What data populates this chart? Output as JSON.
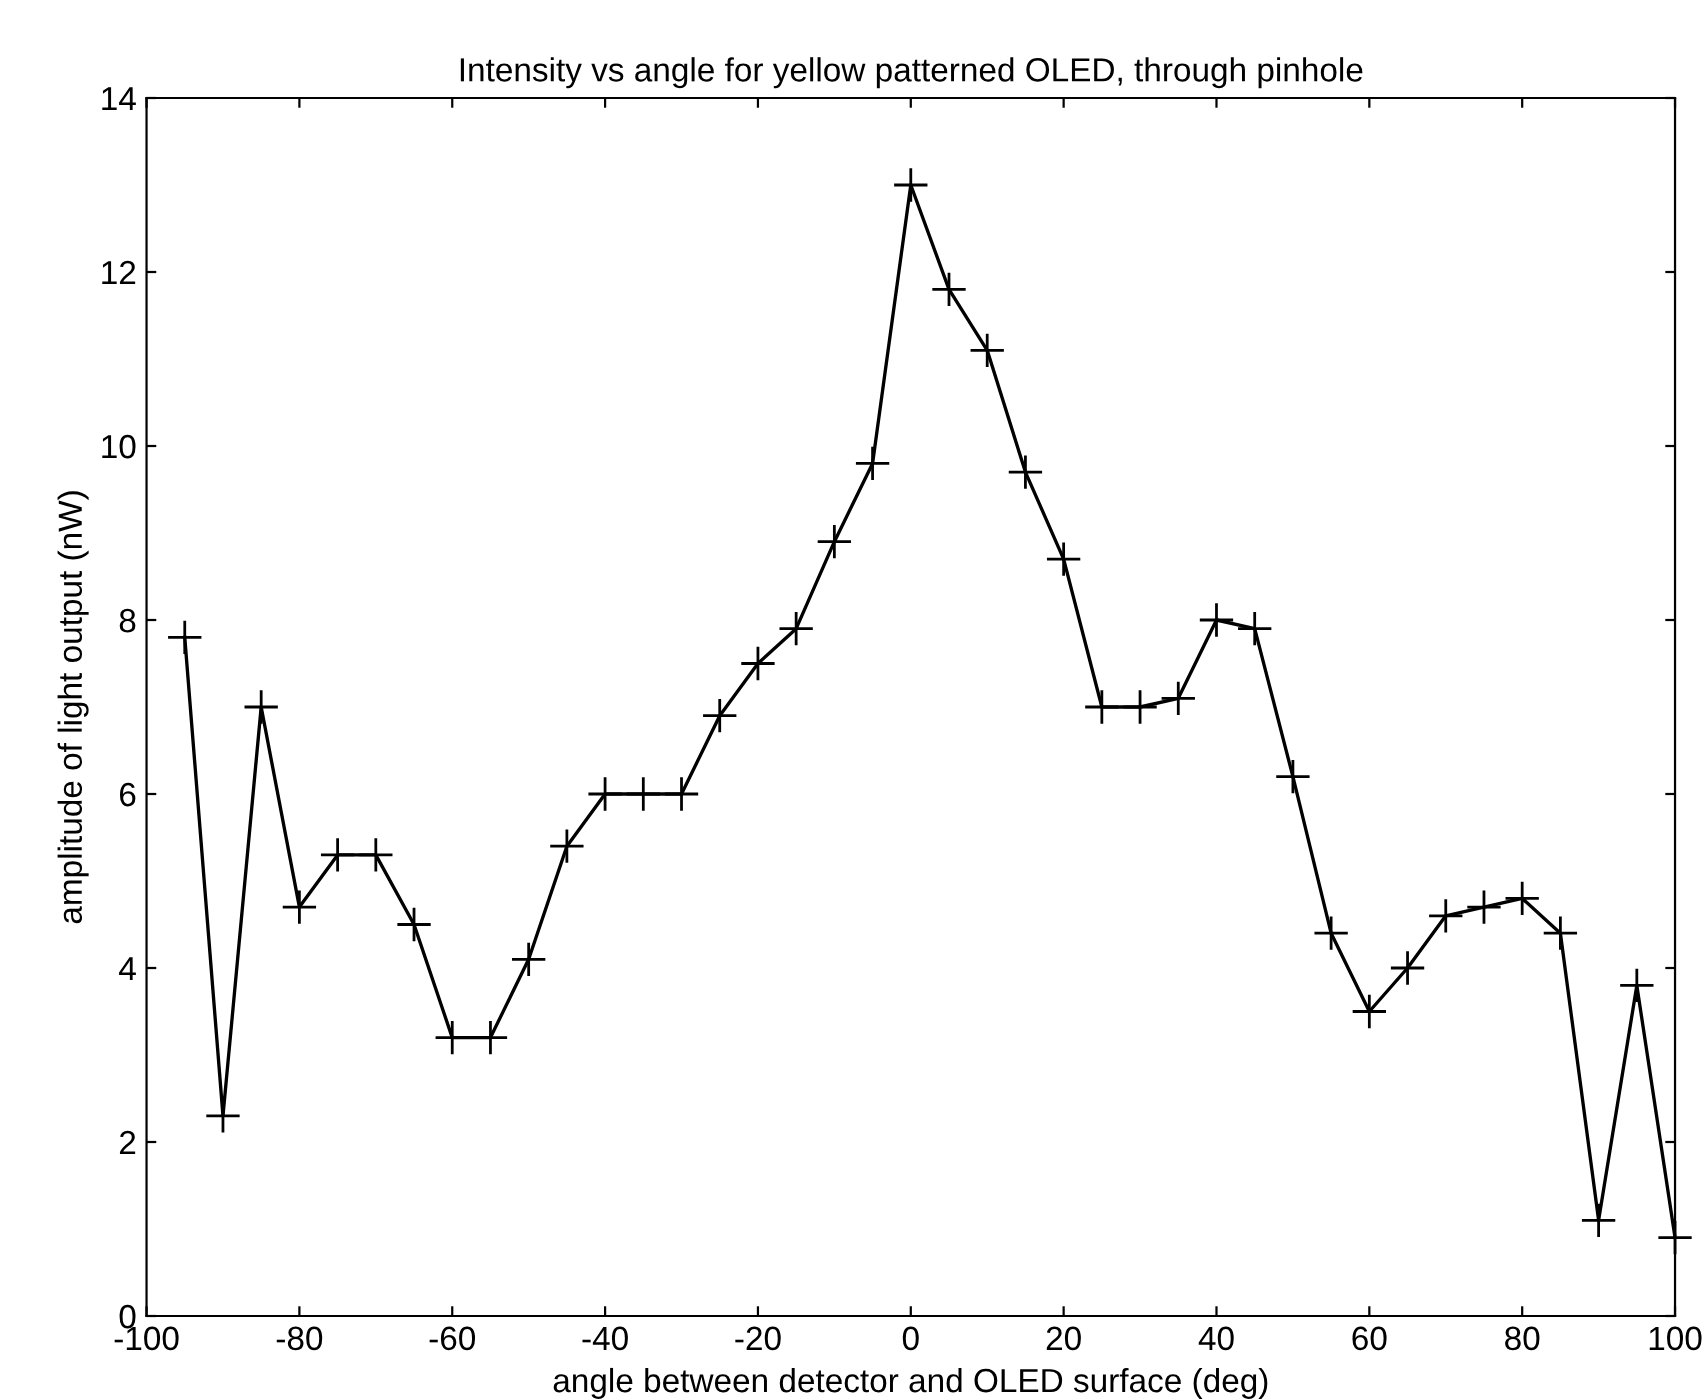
{
  "chart_data": {
    "type": "line",
    "title": "Intensity vs angle for yellow patterned OLED, through pinhole",
    "xlabel": "angle between detector and OLED surface (deg)",
    "ylabel": "amplitude of light output (nW)",
    "x": [
      -95,
      -90,
      -85,
      -80,
      -75,
      -70,
      -65,
      -60,
      -55,
      -50,
      -45,
      -40,
      -35,
      -30,
      -25,
      -20,
      -15,
      -10,
      -5,
      0,
      5,
      10,
      15,
      20,
      25,
      30,
      35,
      40,
      45,
      50,
      55,
      60,
      65,
      70,
      75,
      80,
      85,
      90,
      95,
      100
    ],
    "series": [
      {
        "color": "#000000",
        "values": [
          7.8,
          2.3,
          7.0,
          4.7,
          5.3,
          5.3,
          4.5,
          3.2,
          3.2,
          4.1,
          5.4,
          6.0,
          6.0,
          6.0,
          6.9,
          7.5,
          7.9,
          8.9,
          9.8,
          13.0,
          11.8,
          11.1,
          9.7,
          8.7,
          7.0,
          7.0,
          7.1,
          8.0,
          7.9,
          6.2,
          4.4,
          3.5,
          4.0,
          4.6,
          4.7,
          4.8,
          4.4,
          1.1,
          3.8,
          0.9
        ]
      }
    ],
    "xlim": [
      -100,
      100
    ],
    "ylim": [
      0,
      14
    ],
    "xticks": [
      -100,
      -80,
      -60,
      -40,
      -20,
      0,
      20,
      40,
      60,
      80,
      100
    ],
    "yticks": [
      0,
      2,
      4,
      6,
      8,
      10,
      12,
      14
    ],
    "marker": "cross",
    "line_style": "solid",
    "grid": false,
    "legend": false
  }
}
